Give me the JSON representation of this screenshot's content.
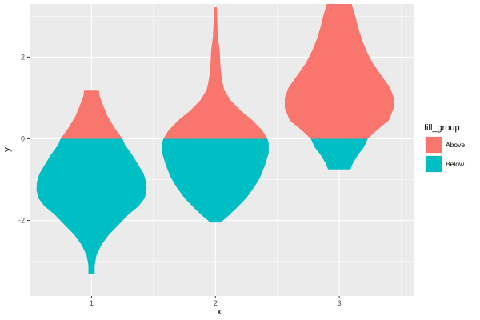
{
  "chart_data": {
    "type": "violin",
    "xlabel": "x",
    "ylabel": "y",
    "categories": [
      "1",
      "2",
      "3"
    ],
    "ylim": [
      -3.85,
      3.3
    ],
    "y_ticks": [
      -2,
      0,
      2
    ],
    "y_tick_labels": [
      "-2",
      "0",
      "2"
    ],
    "x_tick_labels": [
      "1",
      "2",
      "3"
    ],
    "grid": true,
    "panel_background": "#ebebeb",
    "grid_color": "#ffffff",
    "legend": {
      "title": "fill_group",
      "position": "right",
      "items": [
        {
          "label": "Above",
          "color": "#f8766d"
        },
        {
          "label": "Below",
          "color": "#00bfc4"
        }
      ]
    },
    "violins": [
      {
        "x": 1,
        "profile": [
          {
            "y": -3.32,
            "w": 0.025
          },
          {
            "y": -3.1,
            "w": 0.025
          },
          {
            "y": -2.85,
            "w": 0.04
          },
          {
            "y": -2.6,
            "w": 0.08
          },
          {
            "y": -2.35,
            "w": 0.14
          },
          {
            "y": -2.1,
            "w": 0.22
          },
          {
            "y": -1.85,
            "w": 0.3
          },
          {
            "y": -1.65,
            "w": 0.38
          },
          {
            "y": -1.45,
            "w": 0.43
          },
          {
            "y": -1.25,
            "w": 0.445
          },
          {
            "y": -1.05,
            "w": 0.44
          },
          {
            "y": -0.85,
            "w": 0.42
          },
          {
            "y": -0.65,
            "w": 0.38
          },
          {
            "y": -0.4,
            "w": 0.33
          },
          {
            "y": -0.15,
            "w": 0.27
          },
          {
            "y": 0.0,
            "w": 0.25
          },
          {
            "y": 0.25,
            "w": 0.19
          },
          {
            "y": 0.55,
            "w": 0.13
          },
          {
            "y": 0.85,
            "w": 0.09
          },
          {
            "y": 1.05,
            "w": 0.065
          },
          {
            "y": 1.18,
            "w": 0.06
          }
        ]
      },
      {
        "x": 2,
        "profile": [
          {
            "y": -2.05,
            "w": 0.04
          },
          {
            "y": -1.9,
            "w": 0.1
          },
          {
            "y": -1.7,
            "w": 0.17
          },
          {
            "y": -1.45,
            "w": 0.25
          },
          {
            "y": -1.2,
            "w": 0.31
          },
          {
            "y": -0.95,
            "w": 0.36
          },
          {
            "y": -0.65,
            "w": 0.4
          },
          {
            "y": -0.35,
            "w": 0.43
          },
          {
            "y": -0.1,
            "w": 0.43
          },
          {
            "y": 0.0,
            "w": 0.42
          },
          {
            "y": 0.2,
            "w": 0.38
          },
          {
            "y": 0.45,
            "w": 0.3
          },
          {
            "y": 0.7,
            "w": 0.2
          },
          {
            "y": 0.95,
            "w": 0.12
          },
          {
            "y": 1.2,
            "w": 0.07
          },
          {
            "y": 1.5,
            "w": 0.05
          },
          {
            "y": 1.8,
            "w": 0.04
          },
          {
            "y": 2.15,
            "w": 0.035
          },
          {
            "y": 2.5,
            "w": 0.02
          },
          {
            "y": 2.85,
            "w": 0.015
          },
          {
            "y": 3.05,
            "w": 0.013
          },
          {
            "y": 3.22,
            "w": 0.012
          }
        ]
      },
      {
        "x": 3,
        "profile": [
          {
            "y": -0.75,
            "w": 0.09
          },
          {
            "y": -0.6,
            "w": 0.11
          },
          {
            "y": -0.4,
            "w": 0.15
          },
          {
            "y": -0.2,
            "w": 0.2
          },
          {
            "y": 0.0,
            "w": 0.23
          },
          {
            "y": 0.2,
            "w": 0.3
          },
          {
            "y": 0.45,
            "w": 0.4
          },
          {
            "y": 0.75,
            "w": 0.44
          },
          {
            "y": 1.0,
            "w": 0.44
          },
          {
            "y": 1.25,
            "w": 0.41
          },
          {
            "y": 1.55,
            "w": 0.34
          },
          {
            "y": 1.85,
            "w": 0.27
          },
          {
            "y": 2.15,
            "w": 0.22
          },
          {
            "y": 2.45,
            "w": 0.18
          },
          {
            "y": 2.75,
            "w": 0.15
          },
          {
            "y": 3.0,
            "w": 0.13
          },
          {
            "y": 3.15,
            "w": 0.115
          },
          {
            "y": 3.3,
            "w": 0.1
          }
        ]
      }
    ]
  }
}
